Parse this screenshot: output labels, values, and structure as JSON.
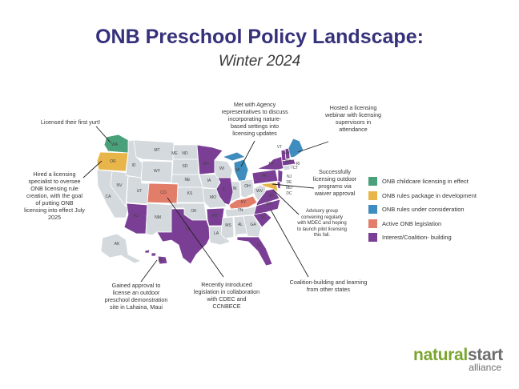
{
  "title": "ONB Preschool Policy Landscape:",
  "subtitle": "Winter 2024",
  "colors": {
    "licensing_effect": "#4aa07a",
    "rules_development": "#e8b54a",
    "rules_consideration": "#3f8dbe",
    "active_legislation": "#e27d6a",
    "interest_coalition": "#7a3f95",
    "no_activity": "#d3d9dd",
    "border": "#ffffff"
  },
  "state_labels": [
    "WA",
    "OR",
    "ME",
    "ND",
    "MT",
    "MN",
    "WI",
    "MI",
    "NH",
    "MA",
    "SD",
    "ID",
    "WY",
    "IA",
    "NE",
    "NV",
    "UT",
    "CA",
    "CO",
    "KS",
    "IL",
    "IN",
    "OH",
    "PA",
    "NY",
    "MO",
    "KY",
    "WV",
    "VA",
    "NJ",
    "DE",
    "MD",
    "DC",
    "AZ",
    "NM",
    "OK",
    "AR",
    "TN",
    "NC",
    "SC",
    "MS",
    "AL",
    "GA",
    "TX",
    "LA",
    "FL",
    "AK",
    "HI",
    "CT",
    "RI",
    "VT"
  ],
  "annotations": {
    "yurt": "Licensed their first yurt!",
    "oregon": "Hired a licensing specialist to oversee ONB licensing rule creation, with the goal of putting ONB licensing into effect July 2025",
    "agency": "Met with Agency representatives to discuss incorporating nature-based settings into licensing updates",
    "webinar": "Hosted a licensing webinar with licensing supervisors in attendance",
    "waiver": "Successfully licensing outdoor programs via waiver approval",
    "advisory": "Advisory group convening regularly with MDEC and hoping to launch pilot licensing this fall.",
    "hawaii": "Gained approval to license an outdoor preschool demonstration site in Lahaina, Maui",
    "colorado": "Recently introduced legislation in collaboration with CDEC and CCNBECE",
    "coalition": "Coalition-building and learning from other states"
  },
  "legend": [
    {
      "label": "ONB childcare licensing in effect",
      "color": "#4aa07a"
    },
    {
      "label": "ONB rules package in development",
      "color": "#e8b54a"
    },
    {
      "label": "ONB rules under consideration",
      "color": "#3f8dbe"
    },
    {
      "label": "Active ONB legislation",
      "color": "#e27d6a"
    },
    {
      "label": "Interest/Coalition- building",
      "color": "#7a3f95"
    }
  ],
  "logo": {
    "natural": "natural",
    "start": "start",
    "sub": "alliance"
  }
}
